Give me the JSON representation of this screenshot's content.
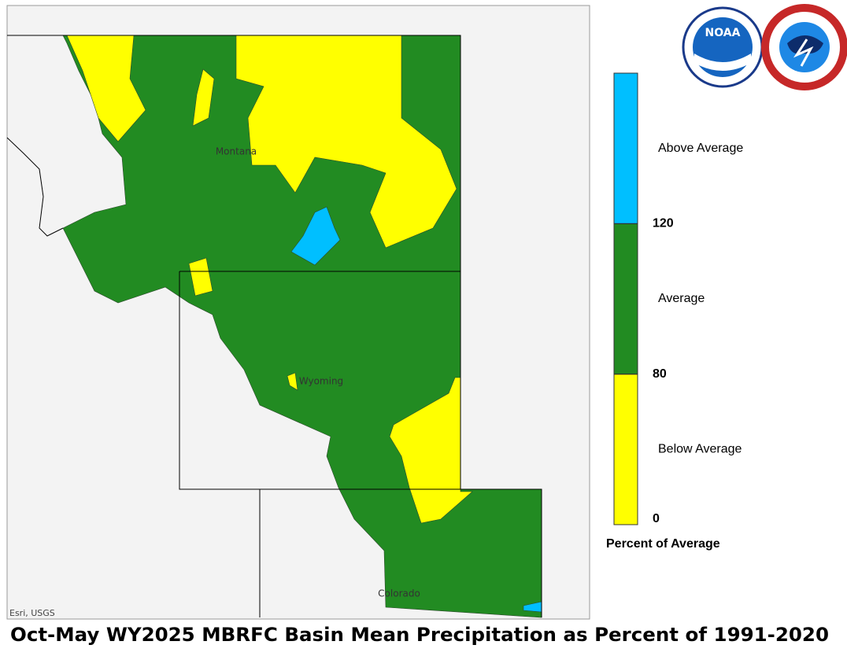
{
  "map": {
    "labels": [
      "Montana",
      "Wyoming",
      "Colorado"
    ],
    "attribution": "Esri, USGS",
    "logo_text": "NOAA",
    "legend": {
      "title": "Percent of Average",
      "breaks": [
        0,
        80,
        120
      ],
      "classes": [
        {
          "label": "Below Average",
          "color": "#ffff00"
        },
        {
          "label": "Average",
          "color": "#228b22"
        },
        {
          "label": "Above Average",
          "color": "#00bfff"
        }
      ]
    },
    "title": "Oct-May WY2025 MBRFC Basin Mean Precipitation as Percent of 1991-2020"
  }
}
